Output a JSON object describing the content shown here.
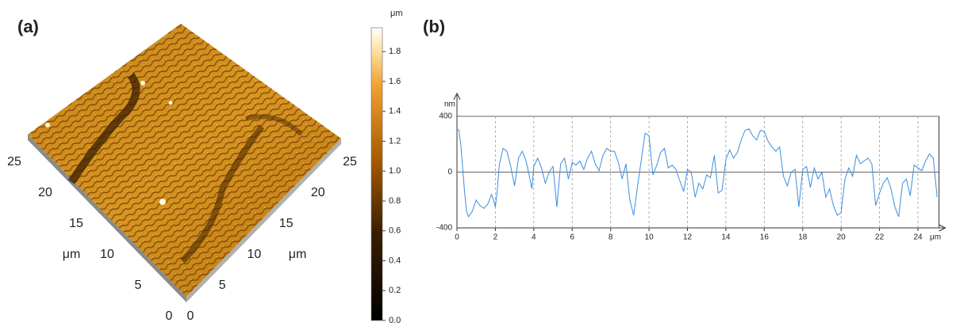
{
  "chart_data": [
    {
      "type": "surface3d",
      "label": "(a)",
      "x_label": "μm",
      "y_label": "μm",
      "xlim": [
        0,
        25
      ],
      "ylim": [
        0,
        25
      ],
      "xticks": [
        0,
        5,
        10,
        15,
        20,
        25
      ],
      "yticks": [
        0,
        5,
        10,
        15,
        20,
        25
      ],
      "colorbar": {
        "label": "μm",
        "lim": [
          0,
          1.96
        ],
        "ticks": [
          {
            "value": 0,
            "label": "0.0"
          },
          0.2,
          0.4,
          0.6,
          0.8,
          {
            "value": 1,
            "label": "1.0"
          },
          1.2,
          1.4,
          1.6,
          1.8
        ]
      }
    },
    {
      "type": "line",
      "label": "(b)",
      "x_label": "μm",
      "y_label": "nm",
      "xlim": [
        0,
        25.1
      ],
      "ylim": [
        -400,
        400
      ],
      "xticks": [
        0,
        2,
        4,
        6,
        8,
        10,
        12,
        14,
        16,
        18,
        20,
        22,
        24
      ],
      "yticks": [
        -400,
        0,
        400
      ],
      "grid": true,
      "x": [
        0,
        0.1,
        0.2,
        0.3,
        0.4,
        0.5,
        0.6,
        0.8,
        1.0,
        1.2,
        1.4,
        1.6,
        1.8,
        1.9,
        2.0,
        2.1,
        2.2,
        2.4,
        2.6,
        2.8,
        3.0,
        3.2,
        3.4,
        3.6,
        3.8,
        3.9,
        4.0,
        4.2,
        4.4,
        4.6,
        4.8,
        5.0,
        5.2,
        5.4,
        5.6,
        5.8,
        6.0,
        6.2,
        6.4,
        6.6,
        6.8,
        7.0,
        7.2,
        7.4,
        7.6,
        7.8,
        8.0,
        8.2,
        8.4,
        8.6,
        8.8,
        9.0,
        9.2,
        9.4,
        9.6,
        9.8,
        10.0,
        10.2,
        10.4,
        10.6,
        10.8,
        11.0,
        11.2,
        11.4,
        11.6,
        11.8,
        12.0,
        12.2,
        12.4,
        12.6,
        12.8,
        13.0,
        13.2,
        13.4,
        13.6,
        13.8,
        14.0,
        14.2,
        14.4,
        14.6,
        14.8,
        15.0,
        15.2,
        15.4,
        15.6,
        15.8,
        16.0,
        16.2,
        16.4,
        16.6,
        16.8,
        17.0,
        17.2,
        17.4,
        17.6,
        17.8,
        18.0,
        18.2,
        18.4,
        18.6,
        18.8,
        19.0,
        19.2,
        19.4,
        19.6,
        19.8,
        20.0,
        20.2,
        20.4,
        20.6,
        20.8,
        21.0,
        21.2,
        21.4,
        21.6,
        21.8,
        22.0,
        22.2,
        22.4,
        22.6,
        22.8,
        23.0,
        23.2,
        23.4,
        23.6,
        23.8,
        24.0,
        24.2,
        24.4,
        24.6,
        24.8,
        25.0
      ],
      "series": [
        {
          "color": "#3a8ee0",
          "values": [
            310,
            300,
            200,
            20,
            -150,
            -280,
            -320,
            -280,
            -200,
            -240,
            -260,
            -230,
            -160,
            -200,
            -250,
            -130,
            50,
            170,
            150,
            40,
            -100,
            100,
            150,
            80,
            -50,
            -120,
            40,
            100,
            30,
            -80,
            0,
            40,
            -250,
            60,
            100,
            -50,
            70,
            50,
            80,
            20,
            100,
            150,
            60,
            10,
            120,
            170,
            150,
            150,
            70,
            -50,
            60,
            -200,
            -310,
            -100,
            90,
            280,
            260,
            -20,
            50,
            140,
            170,
            30,
            50,
            20,
            -60,
            -140,
            20,
            0,
            -180,
            -80,
            -120,
            -20,
            -40,
            120,
            -150,
            -130,
            90,
            160,
            100,
            140,
            230,
            300,
            310,
            260,
            230,
            300,
            290,
            220,
            180,
            150,
            180,
            -30,
            -100,
            0,
            20,
            -250,
            20,
            40,
            -110,
            30,
            -50,
            0,
            -180,
            -120,
            -240,
            -310,
            -290,
            -50,
            30,
            -30,
            120,
            60,
            80,
            100,
            60,
            -240,
            -150,
            -80,
            -40,
            -120,
            -250,
            -320,
            -80,
            -50,
            -170,
            50,
            30,
            10,
            80,
            130,
            100,
            -180
          ]
        }
      ]
    }
  ]
}
